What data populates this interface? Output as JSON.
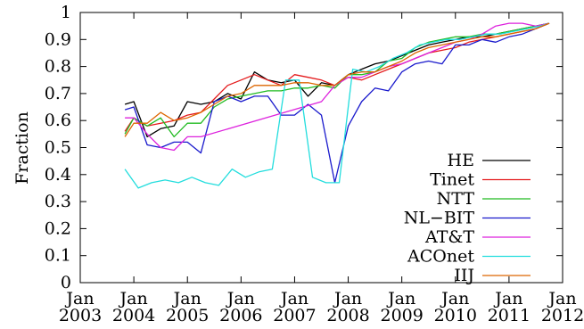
{
  "chart_data": {
    "type": "line",
    "ylabel": "Fraction",
    "xlabel": "",
    "ylim": [
      0,
      1
    ],
    "y_ticks": [
      "0",
      "0.1",
      "0.2",
      "0.3",
      "0.4",
      "0.5",
      "0.6",
      "0.7",
      "0.8",
      "0.9",
      "1"
    ],
    "x_ticks": [
      {
        "month": "Jan",
        "year": "2003"
      },
      {
        "month": "Jan",
        "year": "2004"
      },
      {
        "month": "Jan",
        "year": "2005"
      },
      {
        "month": "Jan",
        "year": "2006"
      },
      {
        "month": "Jan",
        "year": "2007"
      },
      {
        "month": "Jan",
        "year": "2008"
      },
      {
        "month": "Jan",
        "year": "2009"
      },
      {
        "month": "Jan",
        "year": "2010"
      },
      {
        "month": "Jan",
        "year": "2011"
      },
      {
        "month": "Jan",
        "year": "2012"
      }
    ],
    "xlim": [
      "2003-01",
      "2012-01"
    ],
    "legend_position": "bottom-right",
    "grid": false,
    "series": [
      {
        "name": "HE",
        "color": "#000000",
        "points": [
          [
            "2003-11",
            0.66
          ],
          [
            "2004-01",
            0.67
          ],
          [
            "2004-04",
            0.54
          ],
          [
            "2004-07",
            0.57
          ],
          [
            "2004-10",
            0.58
          ],
          [
            "2005-01",
            0.67
          ],
          [
            "2005-04",
            0.66
          ],
          [
            "2005-07",
            0.67
          ],
          [
            "2005-10",
            0.7
          ],
          [
            "2006-01",
            0.68
          ],
          [
            "2006-04",
            0.78
          ],
          [
            "2006-07",
            0.75
          ],
          [
            "2006-10",
            0.74
          ],
          [
            "2007-01",
            0.75
          ],
          [
            "2007-04",
            0.69
          ],
          [
            "2007-07",
            0.74
          ],
          [
            "2007-10",
            0.73
          ],
          [
            "2008-01",
            0.77
          ],
          [
            "2008-04",
            0.79
          ],
          [
            "2008-07",
            0.81
          ],
          [
            "2008-10",
            0.82
          ],
          [
            "2009-01",
            0.84
          ],
          [
            "2009-04",
            0.86
          ],
          [
            "2009-07",
            0.88
          ],
          [
            "2009-10",
            0.89
          ],
          [
            "2010-01",
            0.9
          ],
          [
            "2010-04",
            0.91
          ],
          [
            "2010-07",
            0.91
          ],
          [
            "2010-10",
            0.92
          ],
          [
            "2011-01",
            0.93
          ],
          [
            "2011-04",
            0.94
          ],
          [
            "2011-07",
            0.95
          ],
          [
            "2011-10",
            0.96
          ]
        ]
      },
      {
        "name": "Tinet",
        "color": "#e41a1c",
        "points": [
          [
            "2003-11",
            0.56
          ],
          [
            "2004-01",
            0.61
          ],
          [
            "2004-04",
            0.58
          ],
          [
            "2004-07",
            0.59
          ],
          [
            "2004-10",
            0.6
          ],
          [
            "2005-01",
            0.62
          ],
          [
            "2005-04",
            0.63
          ],
          [
            "2005-07",
            0.68
          ],
          [
            "2005-10",
            0.73
          ],
          [
            "2006-01",
            0.75
          ],
          [
            "2006-04",
            0.77
          ],
          [
            "2006-07",
            0.75
          ],
          [
            "2006-10",
            0.73
          ],
          [
            "2007-01",
            0.77
          ],
          [
            "2007-04",
            0.76
          ],
          [
            "2007-07",
            0.75
          ],
          [
            "2007-10",
            0.73
          ],
          [
            "2008-01",
            0.76
          ],
          [
            "2008-04",
            0.75
          ],
          [
            "2008-07",
            0.77
          ],
          [
            "2008-10",
            0.79
          ],
          [
            "2009-01",
            0.81
          ],
          [
            "2009-04",
            0.83
          ],
          [
            "2009-07",
            0.85
          ],
          [
            "2009-10",
            0.86
          ],
          [
            "2010-01",
            0.87
          ],
          [
            "2010-04",
            0.89
          ],
          [
            "2010-07",
            0.9
          ],
          [
            "2010-10",
            0.91
          ],
          [
            "2011-01",
            0.92
          ],
          [
            "2011-04",
            0.93
          ],
          [
            "2011-07",
            0.94
          ],
          [
            "2011-10",
            0.96
          ]
        ]
      },
      {
        "name": "NTT",
        "color": "#22bb22",
        "points": [
          [
            "2003-11",
            0.55
          ],
          [
            "2004-01",
            0.61
          ],
          [
            "2004-04",
            0.58
          ],
          [
            "2004-07",
            0.61
          ],
          [
            "2004-10",
            0.54
          ],
          [
            "2005-01",
            0.59
          ],
          [
            "2005-04",
            0.59
          ],
          [
            "2005-07",
            0.65
          ],
          [
            "2005-10",
            0.68
          ],
          [
            "2006-01",
            0.69
          ],
          [
            "2006-04",
            0.7
          ],
          [
            "2006-07",
            0.71
          ],
          [
            "2006-10",
            0.71
          ],
          [
            "2007-01",
            0.72
          ],
          [
            "2007-04",
            0.72
          ],
          [
            "2007-07",
            0.73
          ],
          [
            "2007-10",
            0.72
          ],
          [
            "2008-01",
            0.77
          ],
          [
            "2008-04",
            0.77
          ],
          [
            "2008-07",
            0.78
          ],
          [
            "2008-10",
            0.82
          ],
          [
            "2009-01",
            0.83
          ],
          [
            "2009-04",
            0.87
          ],
          [
            "2009-07",
            0.89
          ],
          [
            "2009-10",
            0.9
          ],
          [
            "2010-01",
            0.91
          ],
          [
            "2010-04",
            0.91
          ],
          [
            "2010-07",
            0.92
          ],
          [
            "2010-10",
            0.92
          ],
          [
            "2011-01",
            0.93
          ],
          [
            "2011-04",
            0.94
          ],
          [
            "2011-07",
            0.95
          ],
          [
            "2011-10",
            0.96
          ]
        ]
      },
      {
        "name": "NL−BIT",
        "color": "#1a1acc",
        "points": [
          [
            "2003-11",
            0.64
          ],
          [
            "2004-01",
            0.65
          ],
          [
            "2004-04",
            0.51
          ],
          [
            "2004-07",
            0.5
          ],
          [
            "2004-10",
            0.52
          ],
          [
            "2005-01",
            0.52
          ],
          [
            "2005-04",
            0.48
          ],
          [
            "2005-07",
            0.67
          ],
          [
            "2005-10",
            0.69
          ],
          [
            "2006-01",
            0.67
          ],
          [
            "2006-04",
            0.69
          ],
          [
            "2006-07",
            0.69
          ],
          [
            "2006-10",
            0.62
          ],
          [
            "2007-01",
            0.62
          ],
          [
            "2007-04",
            0.66
          ],
          [
            "2007-07",
            0.62
          ],
          [
            "2007-10",
            0.37
          ],
          [
            "2008-01",
            0.58
          ],
          [
            "2008-04",
            0.67
          ],
          [
            "2008-07",
            0.72
          ],
          [
            "2008-10",
            0.71
          ],
          [
            "2009-01",
            0.78
          ],
          [
            "2009-04",
            0.81
          ],
          [
            "2009-07",
            0.82
          ],
          [
            "2009-10",
            0.81
          ],
          [
            "2010-01",
            0.88
          ],
          [
            "2010-04",
            0.88
          ],
          [
            "2010-07",
            0.9
          ],
          [
            "2010-10",
            0.89
          ],
          [
            "2011-01",
            0.91
          ],
          [
            "2011-04",
            0.92
          ],
          [
            "2011-07",
            0.94
          ],
          [
            "2011-10",
            0.96
          ]
        ]
      },
      {
        "name": "AT&T",
        "color": "#dd22dd",
        "points": [
          [
            "2003-11",
            0.61
          ],
          [
            "2004-01",
            0.61
          ],
          [
            "2004-04",
            0.55
          ],
          [
            "2004-07",
            0.5
          ],
          [
            "2004-10",
            0.49
          ],
          [
            "2005-01",
            0.54
          ],
          [
            "2005-04",
            0.54
          ],
          [
            "2007-07",
            0.67
          ],
          [
            "2007-10",
            0.73
          ],
          [
            "2008-01",
            0.76
          ],
          [
            "2008-04",
            0.76
          ],
          [
            "2008-07",
            0.78
          ],
          [
            "2008-10",
            0.8
          ],
          [
            "2009-01",
            0.81
          ],
          [
            "2009-04",
            0.83
          ],
          [
            "2009-07",
            0.85
          ],
          [
            "2009-10",
            0.87
          ],
          [
            "2010-01",
            0.89
          ],
          [
            "2010-04",
            0.9
          ],
          [
            "2010-07",
            0.92
          ],
          [
            "2010-10",
            0.95
          ],
          [
            "2011-01",
            0.96
          ],
          [
            "2011-04",
            0.96
          ],
          [
            "2011-07",
            0.95
          ],
          [
            "2011-10",
            0.96
          ]
        ]
      },
      {
        "name": "ACOnet",
        "color": "#22dddd",
        "points": [
          [
            "2003-11",
            0.42
          ],
          [
            "2004-02",
            0.35
          ],
          [
            "2004-05",
            0.37
          ],
          [
            "2004-08",
            0.38
          ],
          [
            "2004-11",
            0.37
          ],
          [
            "2005-02",
            0.39
          ],
          [
            "2005-05",
            0.37
          ],
          [
            "2005-08",
            0.36
          ],
          [
            "2005-11",
            0.42
          ],
          [
            "2006-02",
            0.39
          ],
          [
            "2006-05",
            0.41
          ],
          [
            "2006-08",
            0.42
          ],
          [
            "2006-11",
            0.75
          ],
          [
            "2007-02",
            0.75
          ],
          [
            "2007-05",
            0.39
          ],
          [
            "2007-08",
            0.37
          ],
          [
            "2007-11",
            0.37
          ],
          [
            "2008-02",
            0.79
          ],
          [
            "2008-05",
            0.78
          ],
          [
            "2008-08",
            0.8
          ],
          [
            "2008-11",
            0.83
          ],
          [
            "2009-02",
            0.85
          ],
          [
            "2009-05",
            0.88
          ],
          [
            "2009-08",
            0.89
          ],
          [
            "2009-11",
            0.9
          ],
          [
            "2010-02",
            0.9
          ],
          [
            "2010-05",
            0.91
          ],
          [
            "2010-08",
            0.92
          ],
          [
            "2010-11",
            0.92
          ],
          [
            "2011-02",
            0.93
          ],
          [
            "2011-05",
            0.94
          ],
          [
            "2011-08",
            0.95
          ],
          [
            "2011-10",
            0.96
          ]
        ]
      },
      {
        "name": "IIJ",
        "color": "#dd6600",
        "points": [
          [
            "2003-11",
            0.54
          ],
          [
            "2004-01",
            0.59
          ],
          [
            "2004-04",
            0.59
          ],
          [
            "2004-07",
            0.63
          ],
          [
            "2004-10",
            0.6
          ],
          [
            "2005-01",
            0.61
          ],
          [
            "2005-04",
            0.63
          ],
          [
            "2005-07",
            0.66
          ],
          [
            "2005-10",
            0.69
          ],
          [
            "2006-01",
            0.7
          ],
          [
            "2006-04",
            0.73
          ],
          [
            "2006-07",
            0.73
          ],
          [
            "2006-10",
            0.73
          ],
          [
            "2007-01",
            0.74
          ],
          [
            "2007-04",
            0.74
          ],
          [
            "2007-07",
            0.73
          ],
          [
            "2007-10",
            0.73
          ],
          [
            "2008-01",
            0.77
          ],
          [
            "2008-04",
            0.78
          ],
          [
            "2008-07",
            0.78
          ],
          [
            "2008-10",
            0.8
          ],
          [
            "2009-01",
            0.82
          ],
          [
            "2009-04",
            0.85
          ],
          [
            "2009-07",
            0.87
          ],
          [
            "2009-10",
            0.88
          ],
          [
            "2010-01",
            0.89
          ],
          [
            "2010-04",
            0.9
          ],
          [
            "2010-07",
            0.91
          ],
          [
            "2010-10",
            0.91
          ],
          [
            "2011-01",
            0.92
          ],
          [
            "2011-04",
            0.93
          ],
          [
            "2011-07",
            0.94
          ],
          [
            "2011-10",
            0.96
          ]
        ]
      }
    ]
  }
}
